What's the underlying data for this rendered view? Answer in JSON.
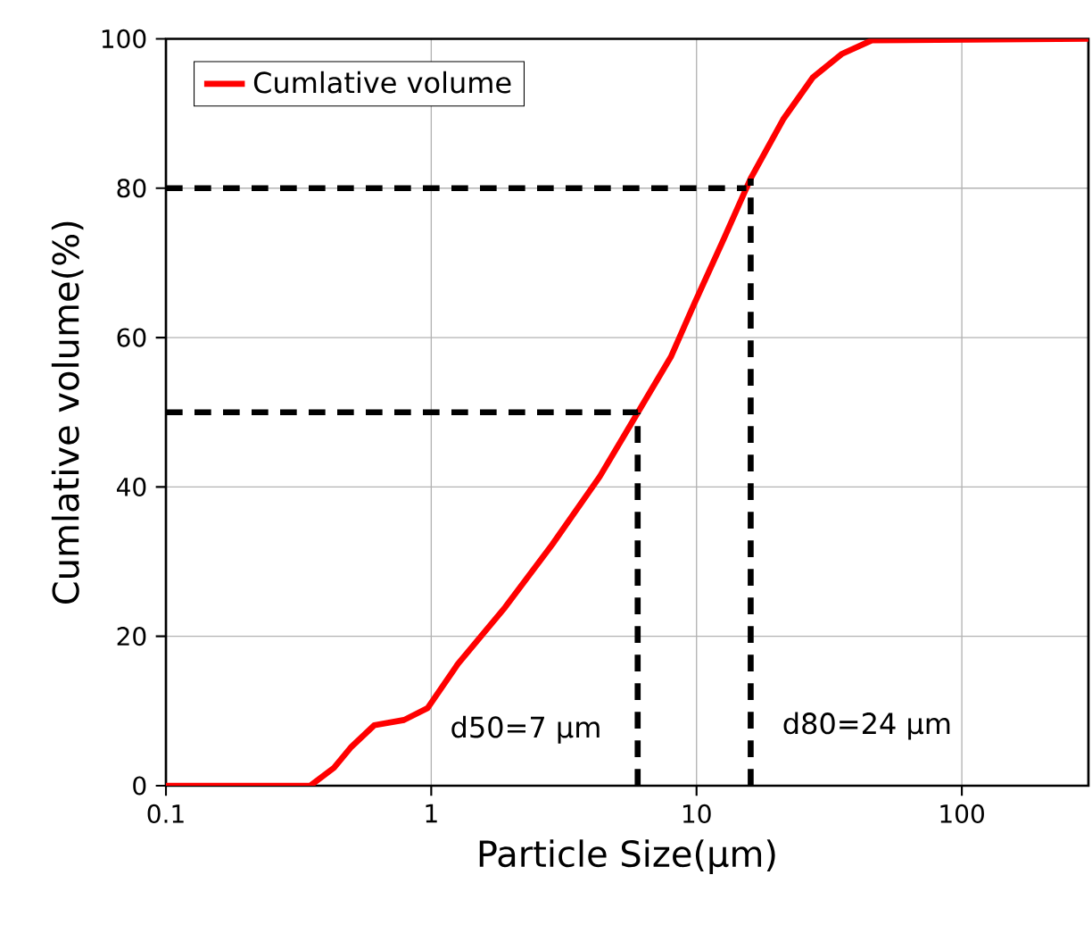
{
  "chart_data": {
    "type": "line",
    "xlabel": "Particle Size(μm)",
    "ylabel": "Cumlative volume(%)",
    "x": [
      0.1,
      0.35,
      0.43,
      0.5,
      0.61,
      0.79,
      0.97,
      1.26,
      1.9,
      2.86,
      4.32,
      5.88,
      8.0,
      9.8,
      12.7,
      16.0,
      21.2,
      27.4,
      35.4,
      45.8,
      300
    ],
    "series": [
      {
        "name": "Cumlative volume",
        "color": "#ff0000",
        "values": [
          0,
          0,
          2.4,
          5.2,
          8.1,
          8.8,
          10.4,
          16.3,
          23.9,
          32.3,
          41.4,
          49.4,
          57.4,
          64.5,
          73.3,
          81.3,
          89.2,
          94.8,
          98.0,
          99.8,
          100
        ]
      }
    ],
    "log": "x",
    "xlim": [
      0.1,
      300
    ],
    "ylim": [
      0,
      100
    ],
    "xticks": [
      0.1,
      1,
      10,
      100
    ],
    "yticks": [
      0,
      20,
      40,
      60,
      80,
      100
    ],
    "grid": true,
    "legend": "top left",
    "line_style": "solid",
    "marker": "none",
    "ref_lines": [
      {
        "axis": "y",
        "value": 80,
        "color": "#000000",
        "line_style": "dashed"
      },
      {
        "axis": "y",
        "value": 50,
        "color": "#000000",
        "line_style": "dashed"
      },
      {
        "axis": "x",
        "value": 6,
        "color": "#000000",
        "line_style": "dashed"
      },
      {
        "axis": "x",
        "value": 16,
        "color": "#000000",
        "line_style": "dashed"
      }
    ],
    "annotations": [
      "d50=7 μm",
      "d80=24 μm"
    ]
  }
}
